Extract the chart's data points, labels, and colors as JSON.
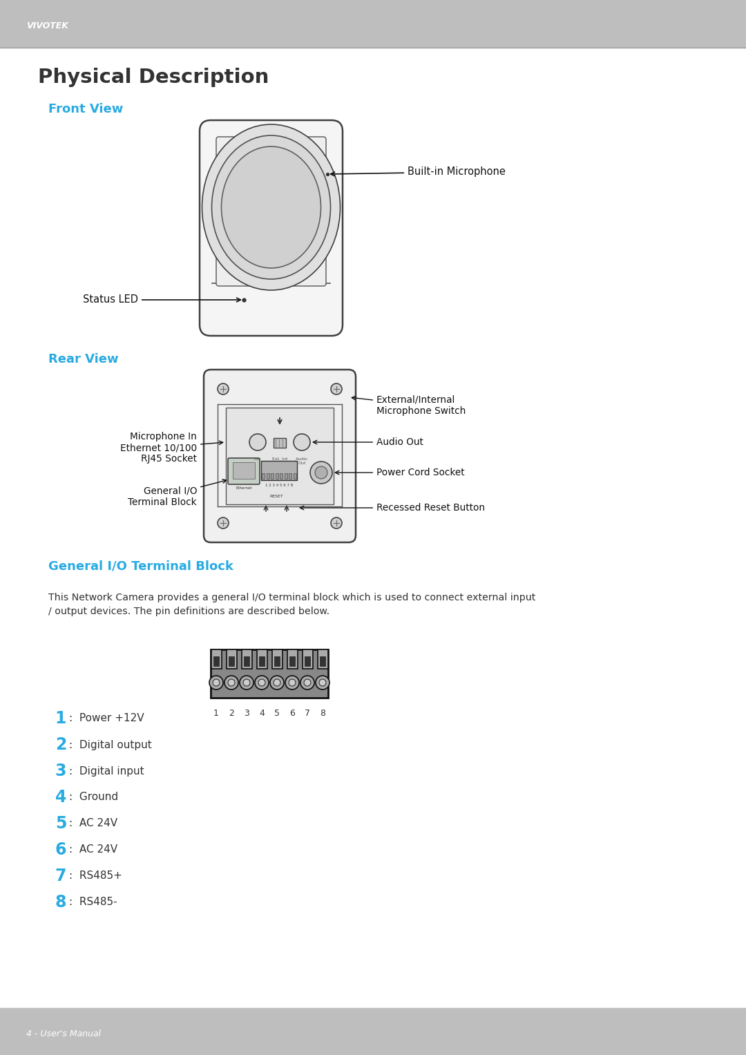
{
  "page_bg": "#ffffff",
  "header_bg": "#bebebe",
  "footer_bg": "#bebebe",
  "header_text": "VIVOTEK",
  "footer_text": "4 - User's Manual",
  "title": "Physical Description",
  "title_color": "#333333",
  "title_fontsize": 21,
  "section_color": "#29abe2",
  "section_front": "Front View",
  "section_rear": "Rear View",
  "section_io": "General I/O Terminal Block",
  "body_color": "#333333",
  "io_description": "This Network Camera provides a general I/O terminal block which is used to connect external input\n/ output devices. The pin definitions are described below.",
  "pin_labels": [
    "1",
    "2",
    "3",
    "4",
    "5",
    "6",
    "7",
    "8"
  ],
  "pin_descriptions": [
    ":  Power +12V",
    ":  Digital output",
    ":  Digital input",
    ":  Ground",
    ":  AC 24V",
    ":  AC 24V",
    ":  RS485+",
    ":  RS485-"
  ],
  "front_mic_label": "Built-in Microphone",
  "front_led_label": "Status LED",
  "rear_ext_mic": "External/Internal\nMicrophone Switch",
  "rear_audio": "Audio Out",
  "rear_power": "Power Cord Socket",
  "rear_mic_in": "Microphone In\nEthernet 10/100\nRJ45 Socket",
  "rear_general_io": "General I/O\nTerminal Block",
  "rear_reset": "Recessed Reset Button"
}
